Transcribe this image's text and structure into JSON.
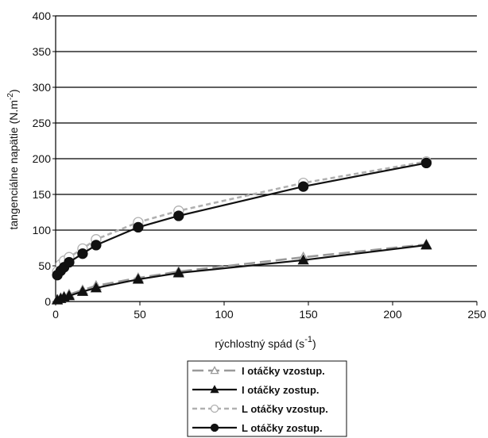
{
  "chart_data": {
    "type": "line",
    "xlabel": "rýchlostný spád (s",
    "xlabel_sup": "-1",
    "xlabel_end": ")",
    "ylabel": "tangenciálne napätie (N.m",
    "ylabel_sup": "-2",
    "ylabel_end": ")",
    "xlim": [
      0,
      250
    ],
    "ylim": [
      0,
      400
    ],
    "x_ticks": [
      0,
      50,
      100,
      150,
      200,
      250
    ],
    "y_ticks": [
      0,
      50,
      100,
      150,
      200,
      250,
      300,
      350,
      400
    ],
    "grid": "horizontal",
    "legend_position": "bottom",
    "series": [
      {
        "name": "I otáčky vzostup.",
        "color": "#9a9a9a",
        "dash": "long",
        "marker": "triangle-open",
        "points": [
          [
            1,
            3
          ],
          [
            3,
            5
          ],
          [
            5,
            7
          ],
          [
            8,
            10
          ],
          [
            16,
            16
          ],
          [
            24,
            22
          ],
          [
            49,
            33
          ],
          [
            73,
            42
          ],
          [
            147,
            62
          ],
          [
            220,
            80
          ]
        ]
      },
      {
        "name": "I otáčky zostup.",
        "color": "#111111",
        "dash": "solid",
        "marker": "triangle-filled",
        "points": [
          [
            1,
            2
          ],
          [
            3,
            4
          ],
          [
            5,
            6
          ],
          [
            8,
            8
          ],
          [
            16,
            14
          ],
          [
            24,
            19
          ],
          [
            49,
            31
          ],
          [
            73,
            40
          ],
          [
            147,
            58
          ],
          [
            220,
            79
          ]
        ]
      },
      {
        "name": "L otáčky vzostup.",
        "color": "#b0b0b0",
        "dash": "short",
        "marker": "circle-open",
        "points": [
          [
            1,
            42
          ],
          [
            3,
            52
          ],
          [
            5,
            57
          ],
          [
            8,
            62
          ],
          [
            16,
            74
          ],
          [
            24,
            87
          ],
          [
            49,
            111
          ],
          [
            73,
            127
          ],
          [
            147,
            166
          ],
          [
            220,
            196
          ]
        ]
      },
      {
        "name": "L otáčky zostup.",
        "color": "#111111",
        "dash": "solid",
        "marker": "circle-filled",
        "points": [
          [
            1,
            37
          ],
          [
            3,
            43
          ],
          [
            5,
            48
          ],
          [
            8,
            55
          ],
          [
            16,
            67
          ],
          [
            24,
            79
          ],
          [
            49,
            104
          ],
          [
            73,
            120
          ],
          [
            147,
            161
          ],
          [
            220,
            194
          ]
        ]
      }
    ]
  }
}
